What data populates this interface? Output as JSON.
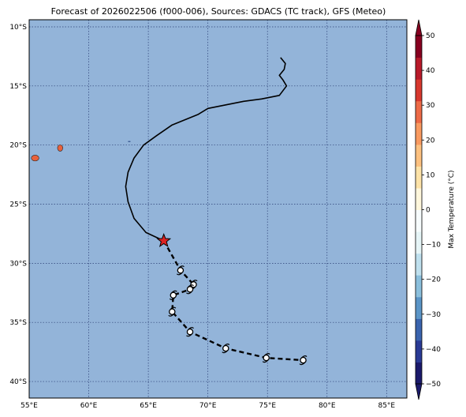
{
  "title": "Forecast of 2026022506 (f000-006), Sources: GDACS (TC track), GFS (Meteo)",
  "map": {
    "ocean_color": "#93b4d9",
    "grid_color": "#2b3f75",
    "lon_range": [
      55,
      86.7
    ],
    "lat_range": [
      -41.4,
      -9.4
    ],
    "lon_ticks": [
      {
        "value": 55,
        "label": "55°E"
      },
      {
        "value": 60,
        "label": "60°E"
      },
      {
        "value": 65,
        "label": "65°E"
      },
      {
        "value": 70,
        "label": "70°E"
      },
      {
        "value": 75,
        "label": "75°E"
      },
      {
        "value": 80,
        "label": "80°E"
      },
      {
        "value": 85,
        "label": "85°E"
      }
    ],
    "lat_ticks": [
      {
        "value": -10,
        "label": "10°S"
      },
      {
        "value": -15,
        "label": "15°S"
      },
      {
        "value": -20,
        "label": "20°S"
      },
      {
        "value": -25,
        "label": "25°S"
      },
      {
        "value": -30,
        "label": "30°S"
      },
      {
        "value": -35,
        "label": "35°S"
      },
      {
        "value": -40,
        "label": "40°S"
      }
    ],
    "island_color": "#e8613c",
    "islands": [
      {
        "lon": 55.5,
        "lat": -21.1,
        "rx": 0.32,
        "ry": 0.25
      },
      {
        "lon": 57.6,
        "lat": -20.25,
        "rx": 0.22,
        "ry": 0.27
      }
    ]
  },
  "track": {
    "past": [
      [
        76.1,
        -12.6
      ],
      [
        76.5,
        -13.1
      ],
      [
        76.4,
        -13.6
      ],
      [
        76.0,
        -14.1
      ],
      [
        76.3,
        -14.5
      ],
      [
        76.6,
        -15.0
      ],
      [
        76.0,
        -15.8
      ],
      [
        74.5,
        -16.1
      ],
      [
        73.0,
        -16.3
      ],
      [
        71.5,
        -16.6
      ],
      [
        70.0,
        -16.9
      ],
      [
        69.2,
        -17.4
      ],
      [
        67.0,
        -18.3
      ],
      [
        65.7,
        -19.2
      ],
      [
        64.6,
        -20.0
      ],
      [
        63.8,
        -21.1
      ],
      [
        63.3,
        -22.3
      ],
      [
        63.1,
        -23.5
      ],
      [
        63.3,
        -24.8
      ],
      [
        63.8,
        -26.2
      ],
      [
        64.8,
        -27.4
      ],
      [
        66.3,
        -28.1
      ]
    ],
    "current": [
      66.3,
      -28.1
    ],
    "forecast": [
      [
        66.3,
        -28.1
      ],
      [
        67.7,
        -30.6
      ],
      [
        68.8,
        -31.8
      ],
      [
        68.5,
        -32.2
      ],
      [
        67.1,
        -32.7
      ],
      [
        67.0,
        -34.1
      ],
      [
        68.5,
        -35.8
      ],
      [
        71.5,
        -37.2
      ],
      [
        74.9,
        -38.0
      ],
      [
        78.0,
        -38.2
      ]
    ],
    "forecast_symbols": [
      [
        67.7,
        -30.6
      ],
      [
        68.8,
        -31.8
      ],
      [
        68.5,
        -32.2
      ],
      [
        67.1,
        -32.7
      ],
      [
        67.0,
        -34.1
      ],
      [
        68.5,
        -35.8
      ],
      [
        71.5,
        -37.2
      ],
      [
        74.9,
        -38.0
      ],
      [
        78.0,
        -38.2
      ]
    ],
    "star_color": "#dd2222"
  },
  "colorbar": {
    "label": "Max Temperature (°C)",
    "min": -50,
    "max": 50,
    "colors": [
      "#1b1a6b",
      "#2a3a95",
      "#3a64ae",
      "#5b95c7",
      "#8bbfdc",
      "#bfe0ee",
      "#e6f5f7",
      "#f7fcfd",
      "#fff7dc",
      "#fee3a8",
      "#fdc180",
      "#f99a60",
      "#ed6a47",
      "#d7382e",
      "#b81a2a",
      "#870020"
    ],
    "ticks": [
      {
        "value": 50,
        "label": "50"
      },
      {
        "value": 40,
        "label": "40"
      },
      {
        "value": 30,
        "label": "30"
      },
      {
        "value": 20,
        "label": "20"
      },
      {
        "value": 10,
        "label": "10"
      },
      {
        "value": 0,
        "label": "0"
      },
      {
        "value": -10,
        "label": "−10"
      },
      {
        "value": -20,
        "label": "−20"
      },
      {
        "value": -30,
        "label": "−30"
      },
      {
        "value": -40,
        "label": "−40"
      },
      {
        "value": -50,
        "label": "−50"
      }
    ]
  }
}
